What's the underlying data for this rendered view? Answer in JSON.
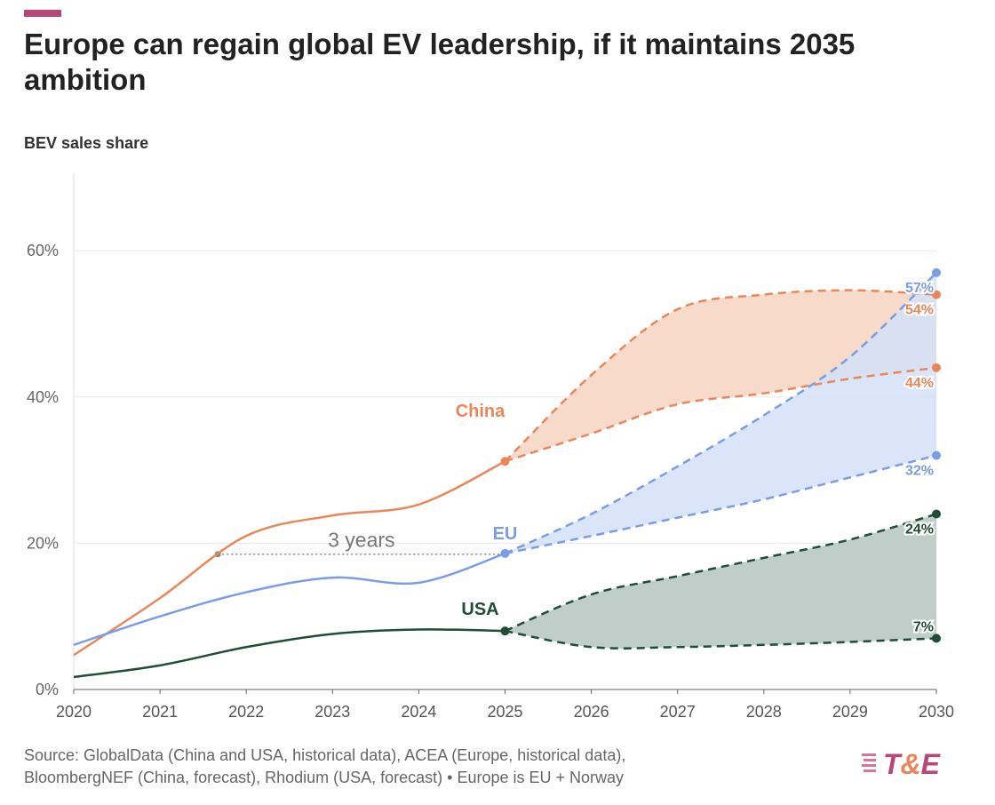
{
  "title": "Europe can regain global EV leadership, if it maintains 2035 ambition",
  "subtitle": "BEV sales share",
  "source_line1": "Source: GlobalData (China and USA, historical data), ACEA (Europe, historical data),",
  "source_line2": "BloombergNEF (China, forecast), Rhodium (USA, forecast) • Europe is EU + Norway",
  "logo_text": "T&E",
  "colors": {
    "accent": "#b8467a",
    "china": "#e8875a",
    "eu": "#7b9de6",
    "usa": "#1f4d38",
    "china_fill": "#f7d4c2",
    "eu_fill": "#d3e0f8",
    "usa_fill": "#b4c6bf"
  },
  "chart_data": {
    "type": "line",
    "xlim": [
      2020,
      2030
    ],
    "ylim": [
      0,
      70
    ],
    "x_ticks": [
      "2020",
      "2021",
      "2022",
      "2023",
      "2024",
      "2025",
      "2026",
      "2027",
      "2028",
      "2029",
      "2030"
    ],
    "y_ticks": [
      {
        "v": 0,
        "label": "0%"
      },
      {
        "v": 20,
        "label": "20%"
      },
      {
        "v": 40,
        "label": "40%"
      },
      {
        "v": 60,
        "label": "60%"
      }
    ],
    "grid": true,
    "series": [
      {
        "name": "China",
        "color": "#e8875a",
        "fill": "#f7d4c2",
        "historical": [
          [
            2020,
            4.7
          ],
          [
            2021,
            12.5
          ],
          [
            2022,
            21
          ],
          [
            2023,
            23.8
          ],
          [
            2024,
            25.3
          ],
          [
            2025,
            31.2
          ]
        ],
        "forecast_high": [
          [
            2025,
            31.2
          ],
          [
            2026,
            43
          ],
          [
            2027,
            52
          ],
          [
            2028,
            54
          ],
          [
            2029,
            54.6
          ],
          [
            2030,
            54
          ]
        ],
        "forecast_low": [
          [
            2025,
            31.2
          ],
          [
            2026,
            35
          ],
          [
            2027,
            39
          ],
          [
            2028,
            40.5
          ],
          [
            2029,
            42.5
          ],
          [
            2030,
            44
          ]
        ],
        "high_label": "54%",
        "low_label": "44%"
      },
      {
        "name": "EU",
        "color": "#7b9de6",
        "fill": "#d3e0f8",
        "historical": [
          [
            2020,
            6.1
          ],
          [
            2021,
            10
          ],
          [
            2022,
            13.3
          ],
          [
            2023,
            15.3
          ],
          [
            2024,
            14.6
          ],
          [
            2025,
            18.6
          ]
        ],
        "forecast_high": [
          [
            2025,
            18.6
          ],
          [
            2026,
            24
          ],
          [
            2027,
            30.5
          ],
          [
            2028,
            37.5
          ],
          [
            2029,
            45.5
          ],
          [
            2030,
            57
          ]
        ],
        "forecast_low": [
          [
            2025,
            18.6
          ],
          [
            2026,
            21
          ],
          [
            2027,
            23.5
          ],
          [
            2028,
            26
          ],
          [
            2029,
            29
          ],
          [
            2030,
            32
          ]
        ],
        "high_label": "57%",
        "low_label": "32%"
      },
      {
        "name": "USA",
        "color": "#1f4d38",
        "fill": "#b4c6bf",
        "historical": [
          [
            2020,
            1.7
          ],
          [
            2021,
            3.3
          ],
          [
            2022,
            5.8
          ],
          [
            2023,
            7.6
          ],
          [
            2024,
            8.2
          ],
          [
            2025,
            8.0
          ]
        ],
        "forecast_high": [
          [
            2025,
            8.0
          ],
          [
            2026,
            13
          ],
          [
            2027,
            15.5
          ],
          [
            2028,
            18
          ],
          [
            2029,
            20.5
          ],
          [
            2030,
            24
          ]
        ],
        "forecast_low": [
          [
            2025,
            8.0
          ],
          [
            2026,
            5.8
          ],
          [
            2027,
            5.8
          ],
          [
            2028,
            6.1
          ],
          [
            2029,
            6.5
          ],
          [
            2030,
            7
          ]
        ],
        "high_label": "24%",
        "low_label": "7%"
      }
    ],
    "annotation": {
      "text": "3 years",
      "from": [
        2021.67,
        18.5
      ],
      "to": [
        2025,
        18.5
      ]
    }
  }
}
